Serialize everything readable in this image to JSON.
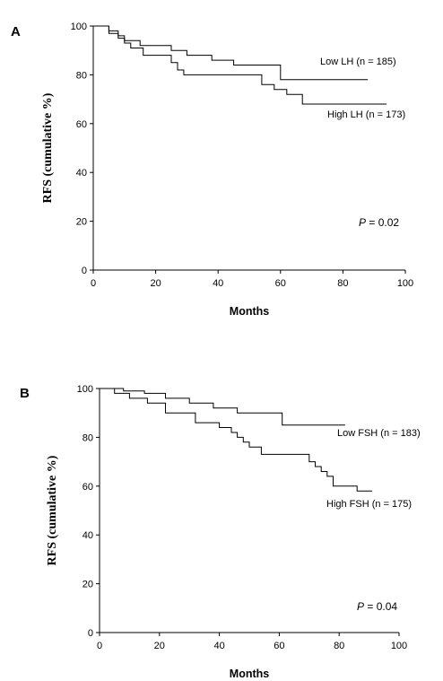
{
  "chart_data": [
    {
      "type": "line",
      "panel_label": "A",
      "xlabel": "Months",
      "ylabel": "RFS (cumulative %)",
      "xlim": [
        0,
        100
      ],
      "ylim": [
        0,
        100
      ],
      "xticks": [
        0,
        20,
        40,
        60,
        80,
        100
      ],
      "yticks": [
        0,
        20,
        40,
        60,
        80,
        100
      ],
      "p_prefix": "P",
      "p_suffix": " = 0.02",
      "series": [
        {
          "name": "Low LH (n = 185)",
          "x": [
            0,
            5,
            5,
            8,
            8,
            10,
            10,
            15,
            15,
            25,
            25,
            30,
            30,
            38,
            38,
            45,
            45,
            60,
            60,
            88
          ],
          "y": [
            100,
            100,
            98,
            98,
            96,
            96,
            94,
            94,
            92,
            92,
            90,
            90,
            88,
            88,
            86,
            86,
            84,
            84,
            78,
            78
          ]
        },
        {
          "name": "High LH (n = 173)",
          "x": [
            0,
            5,
            5,
            8,
            8,
            10,
            10,
            12,
            12,
            16,
            16,
            25,
            25,
            27,
            27,
            29,
            29,
            54,
            54,
            58,
            58,
            62,
            62,
            67,
            67,
            94
          ],
          "y": [
            100,
            100,
            97,
            97,
            95,
            95,
            93,
            93,
            91,
            91,
            88,
            88,
            85,
            85,
            82,
            82,
            80,
            80,
            76,
            76,
            74,
            74,
            72,
            72,
            68,
            68
          ]
        }
      ]
    },
    {
      "type": "line",
      "panel_label": "B",
      "xlabel": "Months",
      "ylabel": "RFS (cumulative %)",
      "xlim": [
        0,
        100
      ],
      "ylim": [
        0,
        100
      ],
      "xticks": [
        0,
        20,
        40,
        60,
        80,
        100
      ],
      "yticks": [
        0,
        20,
        40,
        60,
        80,
        100
      ],
      "p_prefix": "P",
      "p_suffix": " = 0.04",
      "series": [
        {
          "name": "Low FSH (n = 183)",
          "x": [
            0,
            8,
            8,
            15,
            15,
            22,
            22,
            30,
            30,
            38,
            38,
            46,
            46,
            61,
            61,
            82
          ],
          "y": [
            100,
            100,
            99,
            99,
            98,
            98,
            96,
            96,
            94,
            94,
            92,
            92,
            90,
            90,
            85,
            85
          ],
          "show_p": true
        },
        {
          "name": "High FSH (n = 175)",
          "x": [
            0,
            5,
            5,
            10,
            10,
            16,
            16,
            22,
            22,
            32,
            32,
            40,
            40,
            44,
            44,
            46,
            46,
            48,
            48,
            50,
            50,
            54,
            54,
            70,
            70,
            72,
            72,
            74,
            74,
            76,
            76,
            78,
            78,
            86,
            86,
            91
          ],
          "y": [
            100,
            100,
            98,
            98,
            96,
            96,
            94,
            94,
            90,
            90,
            86,
            86,
            84,
            84,
            82,
            82,
            80,
            80,
            78,
            78,
            76,
            76,
            73,
            73,
            70,
            70,
            68,
            68,
            66,
            66,
            64,
            64,
            60,
            60,
            58,
            58
          ]
        }
      ]
    }
  ]
}
